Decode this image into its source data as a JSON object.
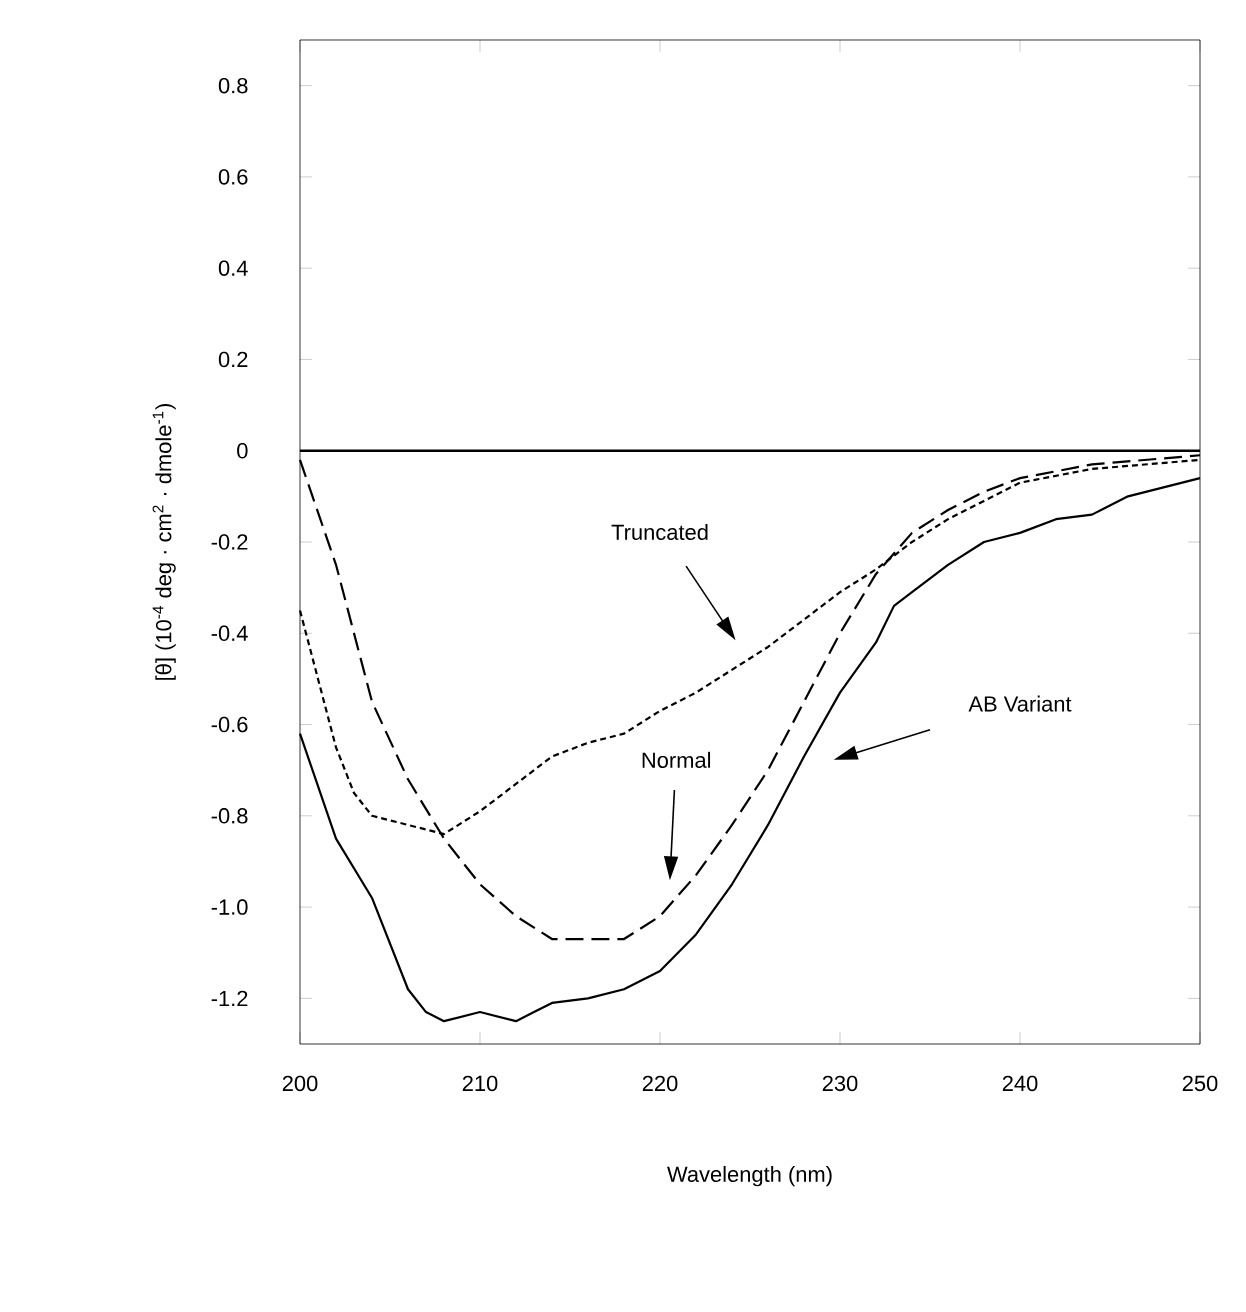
{
  "chart_data": {
    "type": "line",
    "xlabel": "Wavelength (nm)",
    "ylabel": "[θ]  (10$^{-4}$ deg · cm$^{2}$ · dmole$^{-1}$)",
    "xlim": [
      200,
      250
    ],
    "ylim": [
      -1.3,
      0.9
    ],
    "xticks": [
      200,
      210,
      220,
      230,
      240,
      250
    ],
    "yticks": [
      0.8,
      0.6,
      0.4,
      0.2,
      0,
      -0.2,
      -0.4,
      -0.6,
      -0.8,
      {
        "value": -1.0,
        "label": "-1.0"
      },
      -1.2
    ],
    "ref_lines": [
      {
        "axis": "y",
        "value": 0,
        "color": "#000000",
        "line_style": "solid"
      }
    ],
    "series": [
      {
        "color": "#000000",
        "line_style": "solid",
        "x": [
          200,
          202,
          204,
          206,
          207,
          208,
          209,
          210,
          211,
          212,
          213,
          214,
          216,
          218,
          220,
          222,
          224,
          226,
          228,
          230,
          232,
          233,
          234,
          236,
          238,
          240,
          242,
          244,
          246,
          248,
          250
        ],
        "values": [
          -0.62,
          -0.85,
          -0.98,
          -1.18,
          -1.23,
          -1.25,
          -1.24,
          -1.23,
          -1.24,
          -1.25,
          -1.23,
          -1.21,
          -1.2,
          -1.18,
          -1.14,
          -1.06,
          -0.95,
          -0.82,
          -0.67,
          -0.53,
          -0.42,
          -0.34,
          -0.31,
          -0.25,
          -0.2,
          -0.18,
          -0.15,
          -0.14,
          -0.1,
          -0.08,
          -0.06
        ]
      },
      {
        "color": "#000000",
        "line_style": "dashed",
        "x": [
          200,
          202,
          204,
          206,
          208,
          210,
          212,
          214,
          216,
          218,
          220,
          222,
          224,
          226,
          228,
          230,
          232,
          234,
          236,
          238,
          240,
          244,
          250
        ],
        "values": [
          -0.02,
          -0.25,
          -0.55,
          -0.72,
          -0.85,
          -0.95,
          -1.02,
          -1.07,
          -1.07,
          -1.07,
          -1.02,
          -0.93,
          -0.82,
          -0.7,
          -0.55,
          -0.4,
          -0.27,
          -0.18,
          -0.13,
          -0.09,
          -0.06,
          -0.03,
          -0.01
        ]
      },
      {
        "color": "#000000",
        "line_style": "dotted",
        "x": [
          200,
          201,
          202,
          203,
          204,
          206,
          208,
          210,
          212,
          214,
          216,
          218,
          220,
          222,
          224,
          226,
          228,
          230,
          232,
          234,
          236,
          238,
          240,
          244,
          250
        ],
        "values": [
          -0.35,
          -0.5,
          -0.65,
          -0.75,
          -0.8,
          -0.82,
          -0.84,
          -0.79,
          -0.73,
          -0.67,
          -0.64,
          -0.62,
          -0.57,
          -0.53,
          -0.48,
          -0.43,
          -0.37,
          -0.31,
          -0.26,
          -0.2,
          -0.15,
          -0.11,
          -0.07,
          -0.04,
          -0.02
        ]
      }
    ],
    "annotations": [
      "Truncated",
      "Normal",
      "AB Variant"
    ]
  }
}
